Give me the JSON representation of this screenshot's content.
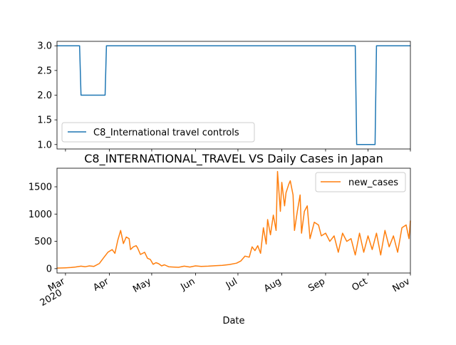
{
  "chart_data": [
    {
      "type": "line",
      "title": "",
      "xlabel": "",
      "ylabel": "",
      "ylim": [
        0.91,
        3.09
      ],
      "yticks": [
        "1.0",
        "1.5",
        "2.0",
        "2.5",
        "3.0"
      ],
      "legend_position": "lower-left",
      "series": [
        {
          "name": "C8_International travel controls",
          "color": "#1f77b4",
          "x": [
            "2020-02-24",
            "2020-03-11",
            "2020-03-12",
            "2020-03-29",
            "2020-03-30",
            "2020-09-22",
            "2020-09-23",
            "2020-10-06",
            "2020-10-07",
            "2020-10-31"
          ],
          "values": [
            3,
            3,
            2,
            2,
            3,
            3,
            1,
            1,
            3,
            3
          ]
        }
      ]
    },
    {
      "type": "line",
      "title": "C8_INTERNATIONAL_TRAVEL VS Daily Cases in Japan",
      "xlabel": "Date",
      "ylabel": "",
      "ylim": [
        -80,
        1840
      ],
      "yticks": [
        "0",
        "500",
        "1000",
        "1500"
      ],
      "xticks": [
        {
          "label": "Mar",
          "sublabel": "2020"
        },
        {
          "label": "Apr"
        },
        {
          "label": "May"
        },
        {
          "label": "Jun"
        },
        {
          "label": "Jul"
        },
        {
          "label": "Aug"
        },
        {
          "label": "Sep"
        },
        {
          "label": "Oct"
        },
        {
          "label": "Nov"
        }
      ],
      "legend_position": "top-right",
      "series": [
        {
          "name": "new_cases",
          "color": "#ff7f0e",
          "x": [
            "2020-02-24",
            "2020-03-01",
            "2020-03-05",
            "2020-03-08",
            "2020-03-12",
            "2020-03-15",
            "2020-03-18",
            "2020-03-21",
            "2020-03-25",
            "2020-03-28",
            "2020-03-31",
            "2020-04-03",
            "2020-04-05",
            "2020-04-07",
            "2020-04-09",
            "2020-04-11",
            "2020-04-13",
            "2020-04-15",
            "2020-04-16",
            "2020-04-18",
            "2020-04-20",
            "2020-04-21",
            "2020-04-23",
            "2020-04-26",
            "2020-04-28",
            "2020-04-30",
            "2020-05-02",
            "2020-05-04",
            "2020-05-06",
            "2020-05-08",
            "2020-05-10",
            "2020-05-13",
            "2020-05-16",
            "2020-05-20",
            "2020-05-24",
            "2020-05-28",
            "2020-06-01",
            "2020-06-05",
            "2020-06-10",
            "2020-06-15",
            "2020-06-20",
            "2020-06-25",
            "2020-06-30",
            "2020-07-03",
            "2020-07-06",
            "2020-07-09",
            "2020-07-11",
            "2020-07-13",
            "2020-07-15",
            "2020-07-17",
            "2020-07-19",
            "2020-07-21",
            "2020-07-22",
            "2020-07-24",
            "2020-07-26",
            "2020-07-28",
            "2020-07-29",
            "2020-07-31",
            "2020-08-01",
            "2020-08-03",
            "2020-08-04",
            "2020-08-06",
            "2020-08-07",
            "2020-08-09",
            "2020-08-10",
            "2020-08-12",
            "2020-08-14",
            "2020-08-15",
            "2020-08-17",
            "2020-08-19",
            "2020-08-21",
            "2020-08-24",
            "2020-08-27",
            "2020-08-29",
            "2020-09-01",
            "2020-09-04",
            "2020-09-07",
            "2020-09-10",
            "2020-09-13",
            "2020-09-16",
            "2020-09-19",
            "2020-09-22",
            "2020-09-25",
            "2020-09-28",
            "2020-10-01",
            "2020-10-04",
            "2020-10-07",
            "2020-10-10",
            "2020-10-13",
            "2020-10-16",
            "2020-10-19",
            "2020-10-22",
            "2020-10-25",
            "2020-10-28",
            "2020-10-30",
            "2020-10-31"
          ],
          "values": [
            10,
            15,
            20,
            30,
            45,
            35,
            50,
            40,
            95,
            200,
            300,
            350,
            280,
            520,
            700,
            460,
            580,
            550,
            350,
            400,
            420,
            380,
            260,
            300,
            190,
            170,
            80,
            110,
            90,
            50,
            70,
            35,
            30,
            25,
            45,
            30,
            50,
            40,
            45,
            55,
            60,
            75,
            100,
            140,
            230,
            210,
            400,
            330,
            420,
            280,
            750,
            450,
            900,
            620,
            980,
            700,
            1780,
            1050,
            1580,
            1150,
            1390,
            1550,
            1610,
            1350,
            700,
            1050,
            1350,
            650,
            1050,
            1150,
            550,
            850,
            800,
            600,
            650,
            500,
            600,
            300,
            650,
            500,
            550,
            250,
            650,
            300,
            600,
            350,
            650,
            250,
            700,
            400,
            600,
            300,
            750,
            800,
            550,
            880
          ]
        }
      ]
    }
  ]
}
